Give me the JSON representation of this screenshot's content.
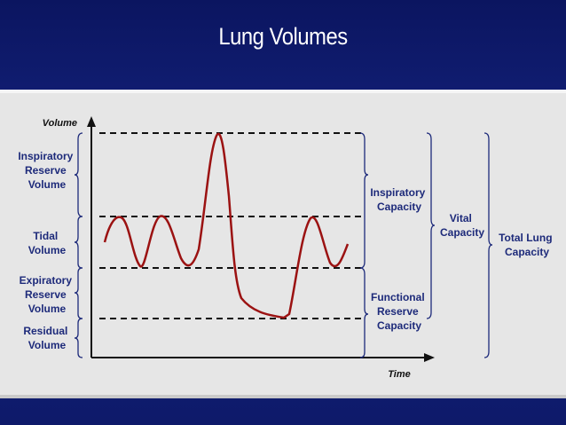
{
  "title": "Lung Volumes",
  "axes": {
    "y_label": "Volume",
    "x_label": "Time"
  },
  "left_labels": {
    "irv": [
      "Inspiratory",
      "Reserve",
      "Volume"
    ],
    "tidal": [
      "Tidal",
      "Volume"
    ],
    "erv": [
      "Expiratory",
      "Reserve",
      "Volume"
    ],
    "rv": [
      "Residual",
      "Volume"
    ]
  },
  "right_labels": {
    "ic": [
      "Inspiratory",
      "Capacity"
    ],
    "frc": [
      "Functional",
      "Reserve",
      "Capacity"
    ],
    "vc": [
      "Vital",
      "Capacity"
    ],
    "tlc": [
      "Total Lung",
      "Capacity"
    ]
  },
  "colors": {
    "curve": "#9b1212",
    "text": "#1d2a7a",
    "axis": "#111111"
  }
}
